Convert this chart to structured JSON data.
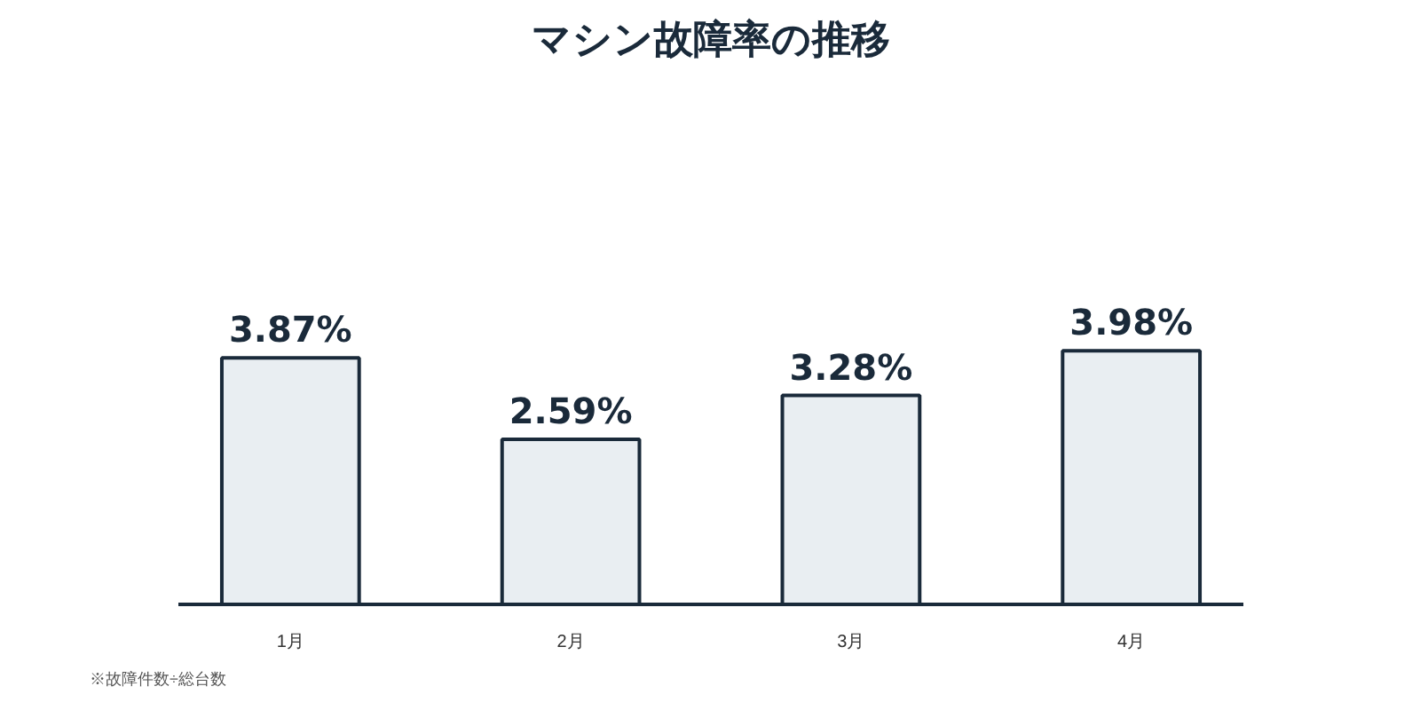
{
  "chart_data": {
    "type": "bar",
    "title": "マシン故障率の推移",
    "categories": [
      "1月",
      "2月",
      "3月",
      "4月"
    ],
    "values": [
      3.87,
      2.59,
      3.28,
      3.98
    ],
    "value_labels": [
      "3.87%",
      "2.59%",
      "3.28%",
      "3.98%"
    ],
    "color": "#e9eef2",
    "annotations": [
      "※故障件数÷総台数"
    ],
    "grid": false
  }
}
